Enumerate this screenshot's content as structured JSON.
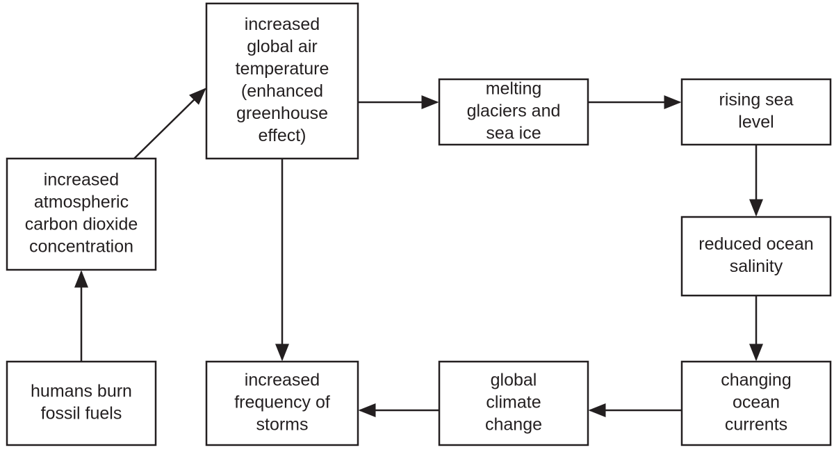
{
  "nodes": [
    {
      "lines": [
        "humans burn",
        "fossil fuels"
      ]
    },
    {
      "lines": [
        "increased",
        "atmospheric",
        "carbon dioxide",
        "concentration"
      ]
    },
    {
      "lines": [
        "increased",
        "global air",
        "temperature",
        "(enhanced",
        "greenhouse",
        "effect)"
      ]
    },
    {
      "lines": [
        "melting",
        "glaciers and",
        "sea ice"
      ]
    },
    {
      "lines": [
        "rising sea",
        "level"
      ]
    },
    {
      "lines": [
        "reduced ocean",
        "salinity"
      ]
    },
    {
      "lines": [
        "changing",
        "ocean",
        "currents"
      ]
    },
    {
      "lines": [
        "global",
        "climate",
        "change"
      ]
    },
    {
      "lines": [
        "increased",
        "frequency of",
        "storms"
      ]
    }
  ]
}
